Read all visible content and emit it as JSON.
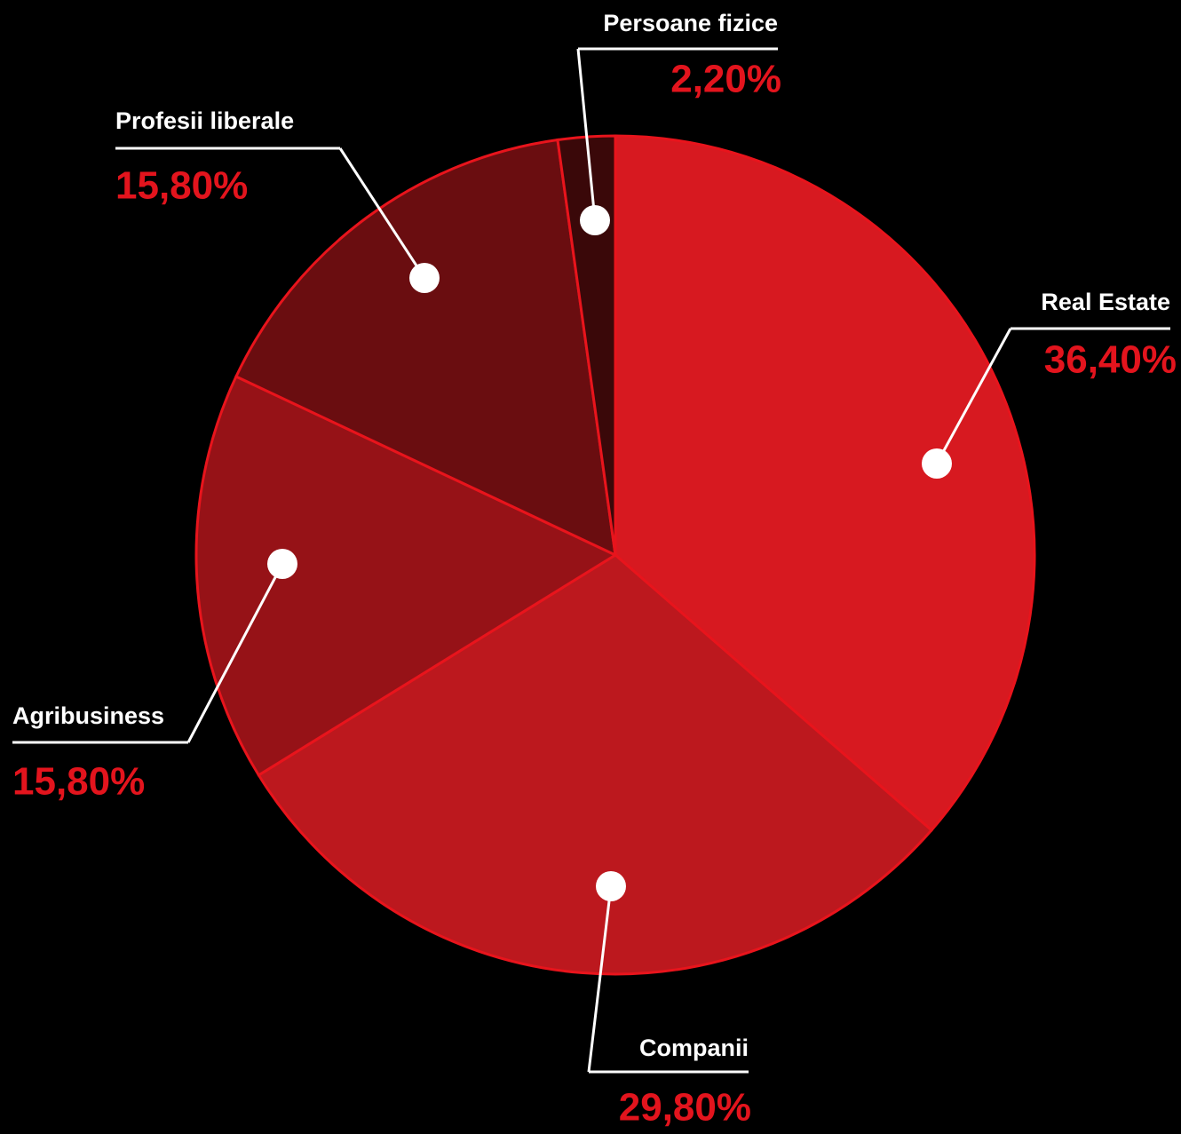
{
  "chart_data": {
    "type": "pie",
    "categories": [
      "Real Estate",
      "Companii",
      "Agribusiness",
      "Profesii liberale",
      "Persoane fizice"
    ],
    "values": [
      36.4,
      29.8,
      15.8,
      15.8,
      2.2
    ],
    "value_labels": [
      "36,40%",
      "29,80%",
      "15,80%",
      "15,80%",
      "2,20%"
    ],
    "colors": [
      "#d71920",
      "#bc181e",
      "#961217",
      "#6a0d10",
      "#3a0809"
    ]
  }
}
